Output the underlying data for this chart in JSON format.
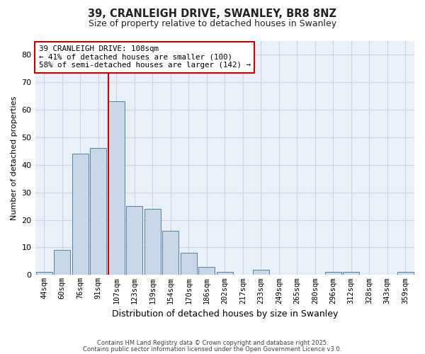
{
  "title_line1": "39, CRANLEIGH DRIVE, SWANLEY, BR8 8NZ",
  "title_line2": "Size of property relative to detached houses in Swanley",
  "xlabel": "Distribution of detached houses by size in Swanley",
  "ylabel": "Number of detached properties",
  "categories": [
    "44sqm",
    "60sqm",
    "76sqm",
    "91sqm",
    "107sqm",
    "123sqm",
    "139sqm",
    "154sqm",
    "170sqm",
    "186sqm",
    "202sqm",
    "217sqm",
    "233sqm",
    "249sqm",
    "265sqm",
    "280sqm",
    "296sqm",
    "312sqm",
    "328sqm",
    "343sqm",
    "359sqm"
  ],
  "values": [
    1,
    9,
    44,
    46,
    63,
    25,
    24,
    16,
    8,
    3,
    1,
    0,
    2,
    0,
    0,
    0,
    1,
    1,
    0,
    0,
    1
  ],
  "bar_color": "#c8d8e8",
  "bar_edge_color": "#5580a0",
  "highlight_line_color": "#cc0000",
  "annotation_text": "39 CRANLEIGH DRIVE: 108sqm\n← 41% of detached houses are smaller (100)\n58% of semi-detached houses are larger (142) →",
  "annotation_box_color": "#ffffff",
  "annotation_box_edge_color": "#cc0000",
  "ylim": [
    0,
    85
  ],
  "yticks": [
    0,
    10,
    20,
    30,
    40,
    50,
    60,
    70,
    80
  ],
  "fig_background_color": "#ffffff",
  "plot_background_color": "#eaf0f8",
  "grid_color": "#c8d4e8",
  "footer_line1": "Contains HM Land Registry data © Crown copyright and database right 2025.",
  "footer_line2": "Contains public sector information licensed under the Open Government Licence v3.0."
}
